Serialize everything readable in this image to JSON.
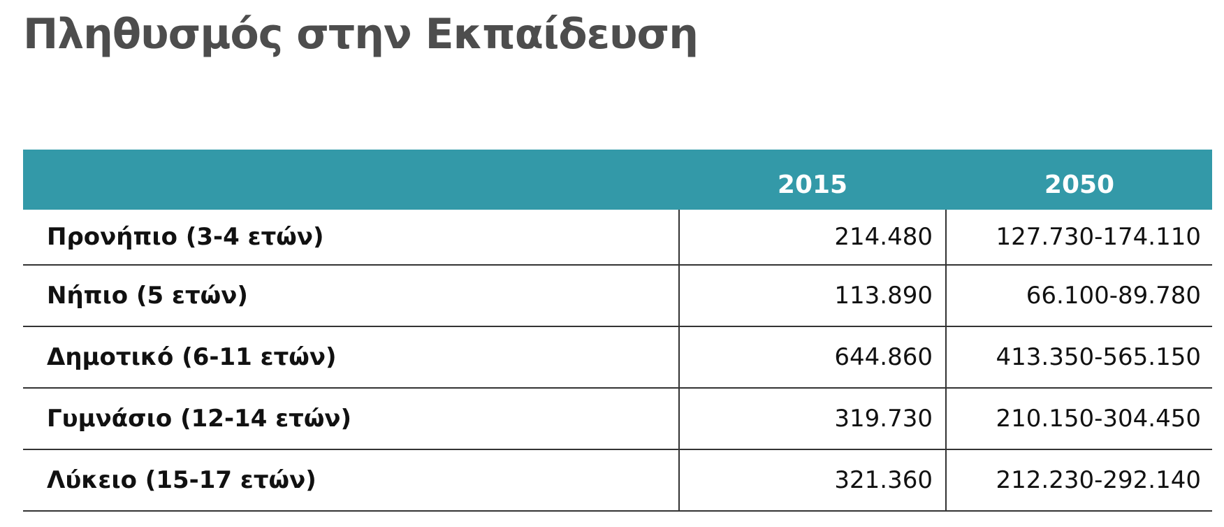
{
  "header": {
    "title": "Πληθυσμός στην Εκπαίδευση"
  },
  "table": {
    "columns": [
      "2015",
      "2050"
    ],
    "rows": [
      [
        "Προνήπιο (3-4 ετών)",
        "214.480",
        "127.730-174.110"
      ],
      [
        "Νήπιο (5 ετών)",
        "113.890",
        "66.100-89.780"
      ],
      [
        "Δημοτικό (6-11 ετών)",
        "644.860",
        "413.350-565.150"
      ],
      [
        "Γυμνάσιο (12-14 ετών)",
        "319.730",
        "210.150-304.450"
      ],
      [
        "Λύκειο (15-17 ετών)",
        "321.360",
        "212.230-292.140"
      ]
    ]
  }
}
